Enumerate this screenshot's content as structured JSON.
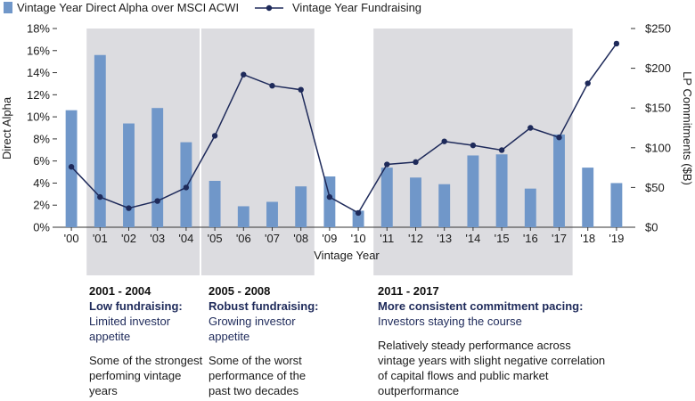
{
  "chart_data": {
    "type": "bar+line",
    "categories": [
      "'00",
      "'01",
      "'02",
      "'03",
      "'04",
      "'05",
      "'06",
      "'07",
      "'08",
      "'09",
      "'10",
      "'11",
      "'12",
      "'13",
      "'14",
      "'15",
      "'16",
      "'17",
      "'18",
      "'19"
    ],
    "series": [
      {
        "name": "Vintage Year Direct Alpha over MSCI ACWI",
        "kind": "bar",
        "axis": "left",
        "values": [
          10.6,
          15.6,
          9.4,
          10.8,
          7.7,
          4.2,
          1.9,
          2.3,
          3.7,
          4.6,
          1.5,
          5.4,
          4.5,
          3.9,
          6.5,
          6.6,
          3.5,
          8.4,
          5.4,
          4.0
        ]
      },
      {
        "name": "Vintage Year Fundraising",
        "kind": "line",
        "axis": "right",
        "values": [
          76,
          38,
          24,
          33,
          50,
          115,
          192,
          178,
          173,
          38,
          18,
          79,
          82,
          108,
          103,
          97,
          125,
          113,
          181,
          231
        ]
      }
    ],
    "xlabel": "Vintage Year",
    "ylabel": "Direct Alpha",
    "y2label": "LP Commitments ($B)",
    "ylim": [
      0,
      18
    ],
    "yticks": [
      "0%",
      "2%",
      "4%",
      "6%",
      "8%",
      "10%",
      "12%",
      "14%",
      "16%",
      "18%"
    ],
    "y2lim": [
      0,
      250
    ],
    "y2ticks": [
      "$0",
      "$50",
      "$100",
      "$150",
      "$200",
      "$250"
    ],
    "shaded_periods": [
      {
        "from": "'01",
        "to": "'04"
      },
      {
        "from": "'05",
        "to": "'08"
      },
      {
        "from": "'11",
        "to": "'17"
      }
    ],
    "colors": {
      "bar": "#7097c9",
      "line": "#1e2a5a",
      "shade": "#dcdce0",
      "axis": "#333333"
    }
  },
  "annotations": [
    {
      "range": "2001 - 2004",
      "bold": "Low fundraising:",
      "sub": " Limited investor appetite",
      "note": "Some of the strongest perfoming vintage years"
    },
    {
      "range": "2005 - 2008",
      "bold": "Robust fundraising:",
      "sub": " Growing investor appetite",
      "note": "Some of the worst performance of the past two decades"
    },
    {
      "range": "2011 - 2017",
      "bold": "More consistent commitment pacing:",
      "sub": " Investors staying the course",
      "note": "Relatively steady performance across vintage years with slight negative correlation of capital flows and public market outperformance"
    }
  ]
}
